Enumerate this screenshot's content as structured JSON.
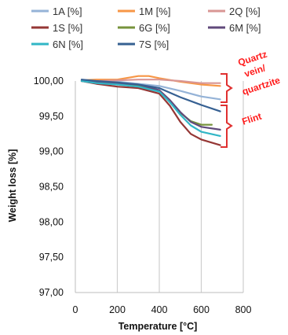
{
  "chart_data": {
    "type": "line",
    "xlabel": "Temperature [°C]",
    "ylabel": "Weight loss [%]",
    "xlim": [
      0,
      800
    ],
    "ylim": [
      97.0,
      100.0
    ],
    "x_ticks": [
      0,
      200,
      400,
      600,
      800
    ],
    "y_ticks": [
      97.0,
      97.5,
      98.0,
      98.5,
      99.0,
      99.5,
      100.0
    ],
    "x_tick_labels": [
      "0",
      "200",
      "400",
      "600",
      "800"
    ],
    "y_tick_labels": [
      "97,00",
      "97,50",
      "98,00",
      "98,50",
      "99,00",
      "99,50",
      "100,00"
    ],
    "grid": "vertical",
    "legend_position": "top",
    "series": [
      {
        "name": "1A [%]",
        "color": "#95b3d7",
        "points": [
          [
            30,
            100.0
          ],
          [
            100,
            100.01
          ],
          [
            200,
            99.99
          ],
          [
            300,
            99.96
          ],
          [
            400,
            99.93
          ],
          [
            500,
            99.86
          ],
          [
            600,
            99.78
          ],
          [
            690,
            99.74
          ]
        ]
      },
      {
        "name": "1M [%]",
        "color": "#f79646",
        "points": [
          [
            30,
            100.01
          ],
          [
            100,
            100.02
          ],
          [
            200,
            100.02
          ],
          [
            300,
            100.07
          ],
          [
            350,
            100.07
          ],
          [
            400,
            100.04
          ],
          [
            500,
            99.99
          ],
          [
            600,
            99.95
          ],
          [
            690,
            99.93
          ]
        ]
      },
      {
        "name": "2Q [%]",
        "color": "#d99694",
        "points": [
          [
            30,
            100.0
          ],
          [
            100,
            100.0
          ],
          [
            200,
            100.01
          ],
          [
            300,
            100.02
          ],
          [
            400,
            100.02
          ],
          [
            500,
            100.0
          ],
          [
            600,
            99.97
          ],
          [
            690,
            99.97
          ]
        ]
      },
      {
        "name": "1S [%]",
        "color": "#953735",
        "points": [
          [
            30,
            100.0
          ],
          [
            100,
            99.96
          ],
          [
            200,
            99.92
          ],
          [
            300,
            99.9
          ],
          [
            400,
            99.82
          ],
          [
            450,
            99.65
          ],
          [
            500,
            99.42
          ],
          [
            550,
            99.25
          ],
          [
            600,
            99.17
          ],
          [
            690,
            99.09
          ]
        ]
      },
      {
        "name": "6G [%]",
        "color": "#77933c",
        "points": [
          [
            30,
            100.0
          ],
          [
            100,
            99.98
          ],
          [
            200,
            99.96
          ],
          [
            300,
            99.94
          ],
          [
            400,
            99.86
          ],
          [
            450,
            99.7
          ],
          [
            500,
            99.55
          ],
          [
            550,
            99.43
          ],
          [
            600,
            99.38
          ],
          [
            650,
            99.38
          ]
        ]
      },
      {
        "name": "6M [%]",
        "color": "#604a7b",
        "points": [
          [
            30,
            100.0
          ],
          [
            100,
            99.98
          ],
          [
            200,
            99.97
          ],
          [
            300,
            99.95
          ],
          [
            400,
            99.87
          ],
          [
            450,
            99.73
          ],
          [
            500,
            99.56
          ],
          [
            550,
            99.42
          ],
          [
            600,
            99.35
          ],
          [
            690,
            99.31
          ]
        ]
      },
      {
        "name": "6N [%]",
        "color": "#31b6c6",
        "points": [
          [
            30,
            100.0
          ],
          [
            100,
            99.97
          ],
          [
            200,
            99.95
          ],
          [
            300,
            99.92
          ],
          [
            400,
            99.85
          ],
          [
            450,
            99.7
          ],
          [
            500,
            99.52
          ],
          [
            550,
            99.37
          ],
          [
            600,
            99.28
          ],
          [
            690,
            99.22
          ]
        ]
      },
      {
        "name": "7S [%]",
        "color": "#366092",
        "points": [
          [
            30,
            100.02
          ],
          [
            100,
            100.0
          ],
          [
            200,
            99.98
          ],
          [
            300,
            99.95
          ],
          [
            400,
            99.9
          ],
          [
            500,
            99.77
          ],
          [
            600,
            99.66
          ],
          [
            690,
            99.57
          ]
        ]
      }
    ],
    "annotations": {
      "quartz_label": [
        "Quartz",
        "vein/",
        "quartzite"
      ],
      "flint_label": "Flint"
    }
  }
}
